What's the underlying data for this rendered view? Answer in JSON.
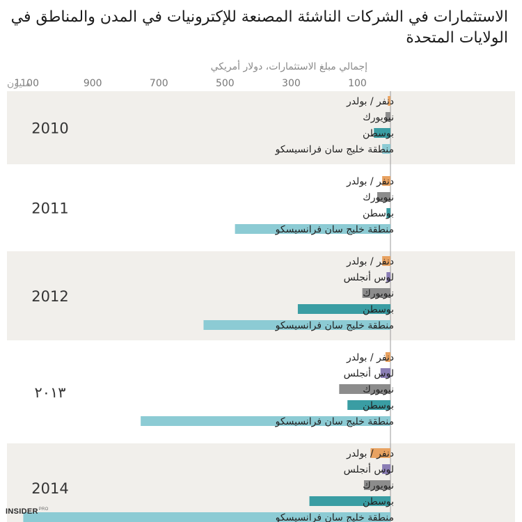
{
  "page": {
    "title": "الاستثمارات في الشركات الناشئة المصنعة للإكترونيات في المدن والمناطق في الولايات المتحدة",
    "brand_main": "INSIDER",
    "brand_sub": "PRO"
  },
  "chart_data": {
    "type": "bar",
    "orientation": "horizontal",
    "direction": "right-to-left",
    "xlabel": "إجمالي مبلغ الاستثمارات، دولار أمريكي",
    "x_unit": "مليون",
    "xlim": [
      0,
      1200
    ],
    "x_ticks": [
      100,
      300,
      500,
      700,
      900,
      1100
    ],
    "x_tick_labels": [
      "100",
      "300",
      "500",
      "700",
      "900",
      "1100"
    ],
    "panel_colors": [
      "#f1efeb",
      "#ffffff"
    ],
    "series_colors": {
      "دنفر / بولدر": "#e8a261",
      "لوس أنجلس": "#8a7db4",
      "نيويورك": "#8c8c8c",
      "بوسطن": "#3a9da3",
      "منطقة خليج سان فرانسيسكو": "#8ccbd4"
    },
    "groups": [
      {
        "year": "2010",
        "bars": [
          {
            "label": "دنفر / بولدر",
            "value": 8
          },
          {
            "label": "نيويورك",
            "value": 15
          },
          {
            "label": "بوسطن",
            "value": 50
          },
          {
            "label": "منطقة خليج سان فرانسيسكو",
            "value": 25
          }
        ]
      },
      {
        "year": "2011",
        "bars": [
          {
            "label": "دنفر / بولدر",
            "value": 25
          },
          {
            "label": "نيويورك",
            "value": 40
          },
          {
            "label": "بوسطن",
            "value": 12
          },
          {
            "label": "منطقة خليج سان فرانسيسكو",
            "value": 470
          }
        ]
      },
      {
        "year": "2012",
        "bars": [
          {
            "label": "دنفر / بولدر",
            "value": 25
          },
          {
            "label": "لوس أنجلس",
            "value": 12
          },
          {
            "label": "نيويورك",
            "value": 85
          },
          {
            "label": "بوسطن",
            "value": 280
          },
          {
            "label": "منطقة خليج سان فرانسيسكو",
            "value": 565
          }
        ]
      },
      {
        "year": "٢٠١٣",
        "bars": [
          {
            "label": "دنفر / بولدر",
            "value": 15
          },
          {
            "label": "لوس أنجلس",
            "value": 30
          },
          {
            "label": "نيويورك",
            "value": 155
          },
          {
            "label": "بوسطن",
            "value": 130
          },
          {
            "label": "منطقة خليج سان فرانسيسكو",
            "value": 755
          }
        ]
      },
      {
        "year": "2014",
        "bars": [
          {
            "label": "دنفر / بولدر",
            "value": 60
          },
          {
            "label": "لوس أنجلس",
            "value": 25
          },
          {
            "label": "نيويورك",
            "value": 80
          },
          {
            "label": "بوسطن",
            "value": 245
          },
          {
            "label": "منطقة خليج سان فرانسيسكو",
            "value": 1110
          }
        ]
      }
    ]
  }
}
